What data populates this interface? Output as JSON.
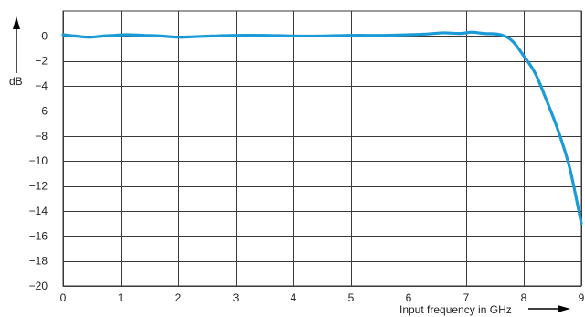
{
  "chart_data": {
    "type": "line",
    "title": "",
    "xlabel": "Input frequency in GHz",
    "ylabel": "dB",
    "xlim": [
      0,
      9
    ],
    "ylim": [
      -20,
      2
    ],
    "x_ticks": [
      0,
      1,
      2,
      3,
      4,
      5,
      6,
      7,
      8,
      9
    ],
    "y_ticks": [
      0,
      -2,
      -4,
      -6,
      -8,
      -10,
      -12,
      -14,
      -16,
      -18,
      -20
    ],
    "x_tick_labels": [
      "0",
      "1",
      "2",
      "3",
      "4",
      "5",
      "6",
      "7",
      "8",
      "9"
    ],
    "y_tick_labels": [
      "0",
      "−2",
      "−4",
      "−6",
      "−8",
      "−10",
      "−12",
      "−14",
      "−16",
      "−18",
      "−20"
    ],
    "grid": true,
    "legend": "none",
    "series": [
      {
        "color": "#1a9ad6",
        "x": [
          0,
          0.2,
          0.45,
          0.7,
          0.9,
          1.1,
          1.4,
          1.7,
          2.0,
          2.3,
          2.6,
          3.0,
          3.5,
          4.0,
          4.5,
          5.0,
          5.5,
          6.0,
          6.3,
          6.6,
          6.9,
          7.1,
          7.3,
          7.6,
          7.8,
          8.0,
          8.2,
          8.4,
          8.6,
          8.8,
          9.0
        ],
        "y": [
          0.1,
          0.0,
          -0.1,
          0.0,
          0.05,
          0.1,
          0.05,
          0.0,
          -0.1,
          -0.05,
          0.0,
          0.05,
          0.05,
          0.0,
          0.0,
          0.05,
          0.05,
          0.1,
          0.15,
          0.25,
          0.2,
          0.3,
          0.2,
          0.1,
          -0.4,
          -1.6,
          -3.0,
          -5.2,
          -7.6,
          -10.6,
          -15.0
        ]
      }
    ]
  }
}
